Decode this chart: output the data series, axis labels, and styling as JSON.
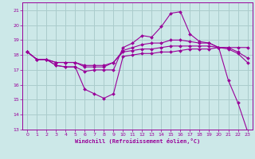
{
  "xlabel": "Windchill (Refroidissement éolien,°C)",
  "bg_color": "#cce8e8",
  "line_color": "#990099",
  "grid_color": "#aacccc",
  "xlim": [
    -0.5,
    23.5
  ],
  "ylim": [
    13,
    21.5
  ],
  "xticks": [
    0,
    1,
    2,
    3,
    4,
    5,
    6,
    7,
    8,
    9,
    10,
    11,
    12,
    13,
    14,
    15,
    16,
    17,
    18,
    19,
    20,
    21,
    22,
    23
  ],
  "yticks": [
    13,
    14,
    15,
    16,
    17,
    18,
    19,
    20,
    21
  ],
  "series": [
    {
      "x": [
        0,
        1,
        2,
        3,
        4,
        5,
        6,
        7,
        8,
        9,
        10,
        11,
        12,
        13,
        14,
        15,
        16,
        17,
        18,
        19,
        20,
        21,
        22,
        23
      ],
      "y": [
        18.2,
        17.7,
        17.7,
        17.3,
        17.2,
        17.2,
        15.7,
        15.4,
        15.1,
        15.4,
        17.9,
        18.0,
        18.1,
        18.1,
        18.2,
        18.2,
        18.3,
        18.4,
        18.4,
        18.4,
        18.5,
        16.3,
        14.8,
        12.9
      ]
    },
    {
      "x": [
        0,
        1,
        2,
        3,
        4,
        5,
        6,
        7,
        8,
        9,
        10,
        11,
        12,
        13,
        14,
        15,
        16,
        17,
        18,
        19,
        20,
        21,
        22,
        23
      ],
      "y": [
        18.2,
        17.7,
        17.7,
        17.3,
        17.2,
        17.2,
        16.9,
        17.0,
        17.0,
        17.0,
        18.5,
        18.8,
        19.3,
        19.2,
        19.9,
        20.8,
        20.9,
        19.4,
        18.9,
        18.8,
        18.5,
        18.5,
        18.5,
        18.5
      ]
    },
    {
      "x": [
        0,
        1,
        2,
        3,
        4,
        5,
        6,
        7,
        8,
        9,
        10,
        11,
        12,
        13,
        14,
        15,
        16,
        17,
        18,
        19,
        20,
        21,
        22,
        23
      ],
      "y": [
        18.2,
        17.7,
        17.7,
        17.5,
        17.5,
        17.5,
        17.2,
        17.2,
        17.2,
        17.5,
        18.3,
        18.5,
        18.7,
        18.8,
        18.8,
        19.0,
        19.0,
        18.9,
        18.8,
        18.8,
        18.5,
        18.5,
        18.2,
        17.8
      ]
    },
    {
      "x": [
        0,
        1,
        2,
        3,
        4,
        5,
        6,
        7,
        8,
        9,
        10,
        11,
        12,
        13,
        14,
        15,
        16,
        17,
        18,
        19,
        20,
        21,
        22,
        23
      ],
      "y": [
        18.2,
        17.7,
        17.7,
        17.5,
        17.5,
        17.5,
        17.3,
        17.3,
        17.3,
        17.5,
        18.2,
        18.3,
        18.4,
        18.4,
        18.5,
        18.6,
        18.6,
        18.6,
        18.6,
        18.6,
        18.5,
        18.4,
        18.1,
        17.5
      ]
    }
  ]
}
